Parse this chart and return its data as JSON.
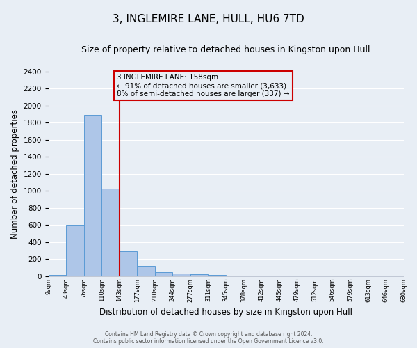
{
  "title": "3, INGLEMIRE LANE, HULL, HU6 7TD",
  "subtitle": "Size of property relative to detached houses in Kingston upon Hull",
  "xlabel": "Distribution of detached houses by size in Kingston upon Hull",
  "ylabel": "Number of detached properties",
  "footer_line1": "Contains HM Land Registry data © Crown copyright and database right 2024.",
  "footer_line2": "Contains public sector information licensed under the Open Government Licence v3.0.",
  "bar_values": [
    15,
    600,
    1890,
    1030,
    290,
    120,
    50,
    35,
    20,
    15,
    5,
    3,
    2,
    1,
    1,
    1,
    1,
    1,
    1,
    1
  ],
  "categories": [
    "9sqm",
    "43sqm",
    "76sqm",
    "110sqm",
    "143sqm",
    "177sqm",
    "210sqm",
    "244sqm",
    "277sqm",
    "311sqm",
    "345sqm",
    "378sqm",
    "412sqm",
    "445sqm",
    "479sqm",
    "512sqm",
    "546sqm",
    "579sqm",
    "613sqm",
    "646sqm",
    "680sqm"
  ],
  "bar_color": "#aec6e8",
  "bar_edgecolor": "#5b9bd5",
  "property_bin_index": 4,
  "vline_color": "#cc0000",
  "annotation_text": "3 INGLEMIRE LANE: 158sqm\n← 91% of detached houses are smaller (3,633)\n8% of semi-detached houses are larger (337) →",
  "annotation_box_color": "#cc0000",
  "ylim": [
    0,
    2400
  ],
  "yticks": [
    0,
    200,
    400,
    600,
    800,
    1000,
    1200,
    1400,
    1600,
    1800,
    2000,
    2200,
    2400
  ],
  "bg_color": "#e8eef5",
  "grid_color": "#ffffff",
  "title_fontsize": 11,
  "subtitle_fontsize": 9,
  "xlabel_fontsize": 8.5,
  "ylabel_fontsize": 8.5,
  "annotation_fontsize": 7.5
}
